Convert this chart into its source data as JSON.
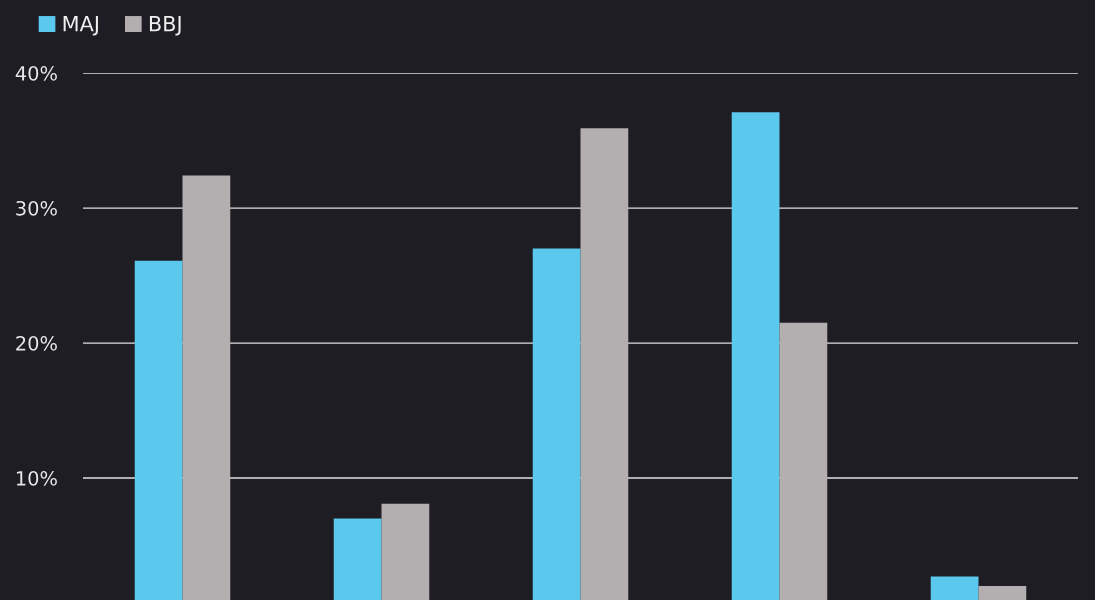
{
  "chart_data": {
    "type": "bar",
    "categories": [
      null,
      null,
      null,
      null,
      null
    ],
    "series": [
      {
        "name": "MAJ",
        "color": "#5bc8ee",
        "values": [
          26.1,
          7.0,
          27.0,
          37.1,
          2.7
        ]
      },
      {
        "name": "BBJ",
        "color": "#b3aeb0",
        "values": [
          32.4,
          8.1,
          35.9,
          21.5,
          2.0
        ]
      }
    ],
    "ylim": [
      0,
      40
    ],
    "yticks": [
      {
        "value": 10,
        "label": "10%"
      },
      {
        "value": 20,
        "label": "20%"
      },
      {
        "value": 30,
        "label": "30%"
      },
      {
        "value": 40,
        "label": "40%"
      }
    ],
    "grid": "y",
    "legend": "top left",
    "tick_labels": "y"
  }
}
